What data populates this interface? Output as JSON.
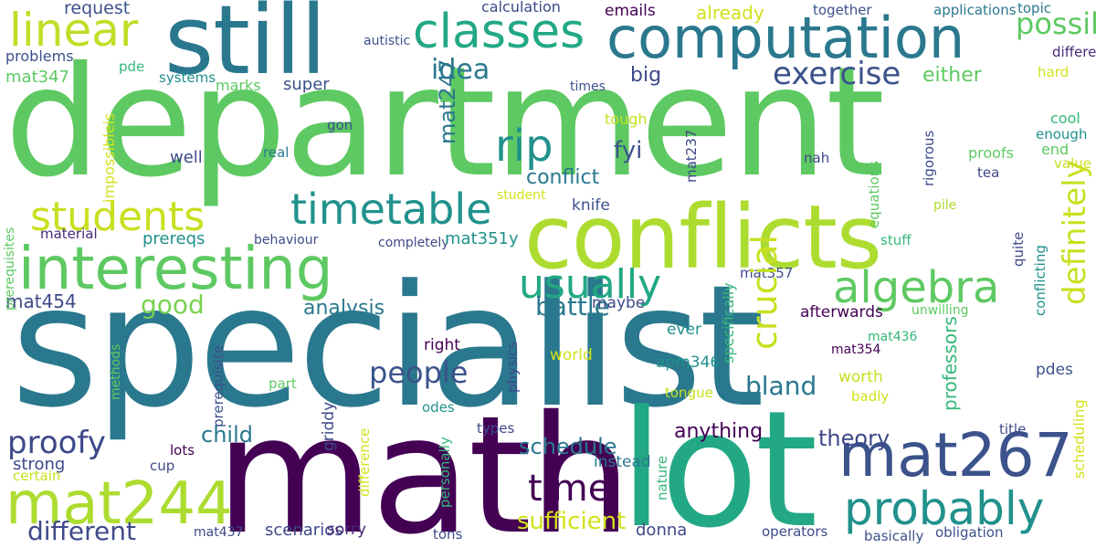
{
  "words": [
    {
      "text": "department",
      "color": "#5ec962"
    },
    {
      "text": "specialist",
      "color": "#2a788e"
    },
    {
      "text": "math",
      "color": "#440154"
    },
    {
      "text": "lot",
      "color": "#22a884"
    },
    {
      "text": "conflicts",
      "color": "#addc30"
    },
    {
      "text": "still",
      "color": "#2a788e"
    },
    {
      "text": "computation",
      "color": "#2a788e"
    },
    {
      "text": "interesting",
      "color": "#5ec962"
    },
    {
      "text": "mat244",
      "color": "#addc30"
    },
    {
      "text": "mat267",
      "color": "#3b528b"
    },
    {
      "text": "classes",
      "color": "#22a884"
    },
    {
      "text": "linear",
      "color": "#bddf26"
    },
    {
      "text": "timetable",
      "color": "#21918c"
    },
    {
      "text": "algebra",
      "color": "#5ec962"
    },
    {
      "text": "probably",
      "color": "#21918c"
    },
    {
      "text": "students",
      "color": "#c8e020"
    },
    {
      "text": "usually",
      "color": "#22a884"
    },
    {
      "text": "rip",
      "color": "#21918c"
    },
    {
      "text": "exercise",
      "color": "#3b528b"
    },
    {
      "text": "people",
      "color": "#3b528b"
    },
    {
      "text": "time",
      "color": "#440154"
    },
    {
      "text": "proofy",
      "color": "#3e4989"
    },
    {
      "text": "idea",
      "color": "#2a788e"
    },
    {
      "text": "possible",
      "color": "#5ec962"
    },
    {
      "text": "good",
      "color": "#7ad151"
    },
    {
      "text": "bland",
      "color": "#2a788e"
    },
    {
      "text": "different",
      "color": "#3e4989"
    },
    {
      "text": "child",
      "color": "#2a788e"
    },
    {
      "text": "sufficient",
      "color": "#d2e21b"
    },
    {
      "text": "schedule",
      "color": "#2a788e"
    },
    {
      "text": "theory",
      "color": "#3e4989"
    },
    {
      "text": "anything",
      "color": "#440154"
    },
    {
      "text": "battle",
      "color": "#2a788e"
    },
    {
      "text": "analysis",
      "color": "#2a788e"
    },
    {
      "text": "fyi",
      "color": "#3b528b"
    },
    {
      "text": "conflict",
      "color": "#2a788e"
    },
    {
      "text": "big",
      "color": "#3e4989"
    },
    {
      "text": "either",
      "color": "#5ec962"
    },
    {
      "text": "already",
      "color": "#d2e21b"
    },
    {
      "text": "request",
      "color": "#3b528b"
    },
    {
      "text": "emails",
      "color": "#440154"
    },
    {
      "text": "calculation",
      "color": "#3e4989"
    },
    {
      "text": "together",
      "color": "#3b528b"
    },
    {
      "text": "applications",
      "color": "#2a788e"
    },
    {
      "text": "topic",
      "color": "#2a788e"
    },
    {
      "text": "problems",
      "color": "#3b528b"
    },
    {
      "text": "autistic",
      "color": "#3b528b"
    },
    {
      "text": "mat347",
      "color": "#5ec962"
    },
    {
      "text": "pde",
      "color": "#35b779"
    },
    {
      "text": "systems",
      "color": "#21918c"
    },
    {
      "text": "marks",
      "color": "#5ec962"
    },
    {
      "text": "super",
      "color": "#3b528b"
    },
    {
      "text": "times",
      "color": "#3b528b"
    },
    {
      "text": "differential",
      "color": "#482878"
    },
    {
      "text": "hard",
      "color": "#d2e21b"
    },
    {
      "text": "cool",
      "color": "#35b779"
    },
    {
      "text": "enough",
      "color": "#21918c"
    },
    {
      "text": "end",
      "color": "#5ec962"
    },
    {
      "text": "value",
      "color": "#c8e020"
    },
    {
      "text": "proofs",
      "color": "#5ec962"
    },
    {
      "text": "tea",
      "color": "#3e4989"
    },
    {
      "text": "nah",
      "color": "#3e4989"
    },
    {
      "text": "real",
      "color": "#2a788e"
    },
    {
      "text": "well",
      "color": "#3e4989"
    },
    {
      "text": "gon",
      "color": "#3b528b"
    },
    {
      "text": "tough",
      "color": "#c8e020"
    },
    {
      "text": "student",
      "color": "#d2e21b"
    },
    {
      "text": "knife",
      "color": "#3b528b"
    },
    {
      "text": "pile",
      "color": "#addc30"
    },
    {
      "text": "material",
      "color": "#482878"
    },
    {
      "text": "behaviour",
      "color": "#3e4989"
    },
    {
      "text": "completely",
      "color": "#3e4989"
    },
    {
      "text": "prereqs",
      "color": "#21918c"
    },
    {
      "text": "mat351y",
      "color": "#21918c"
    },
    {
      "text": "stuff",
      "color": "#35b779"
    },
    {
      "text": "mat357",
      "color": "#3e4989"
    },
    {
      "text": "mat454",
      "color": "#3e4989"
    },
    {
      "text": "maybe",
      "color": "#3e4989"
    },
    {
      "text": "afterwards",
      "color": "#440154"
    },
    {
      "text": "unwilling",
      "color": "#5ec962"
    },
    {
      "text": "ever",
      "color": "#21918c"
    },
    {
      "text": "mat436",
      "color": "#35b779"
    },
    {
      "text": "mat354",
      "color": "#440154"
    },
    {
      "text": "right",
      "color": "#440154"
    },
    {
      "text": "world",
      "color": "#d2e21b"
    },
    {
      "text": "apm346",
      "color": "#21918c"
    },
    {
      "text": "worth",
      "color": "#c8e020"
    },
    {
      "text": "pdes",
      "color": "#3b528b"
    },
    {
      "text": "part",
      "color": "#5ec962"
    },
    {
      "text": "tongue",
      "color": "#c8e020"
    },
    {
      "text": "badly",
      "color": "#d2e21b"
    },
    {
      "text": "odes",
      "color": "#21918c"
    },
    {
      "text": "strong",
      "color": "#3e4989"
    },
    {
      "text": "lots",
      "color": "#440154"
    },
    {
      "text": "cup",
      "color": "#3e4989"
    },
    {
      "text": "certain",
      "color": "#c8e020"
    },
    {
      "text": "types",
      "color": "#3e4989"
    },
    {
      "text": "instead",
      "color": "#2a788e"
    },
    {
      "text": "title",
      "color": "#3e4989"
    },
    {
      "text": "scenarios",
      "color": "#3e4989"
    },
    {
      "text": "sorry",
      "color": "#482878"
    },
    {
      "text": "tons",
      "color": "#3e4989"
    },
    {
      "text": "donna",
      "color": "#3e4989"
    },
    {
      "text": "operators",
      "color": "#3e4989"
    },
    {
      "text": "basically",
      "color": "#3b528b"
    },
    {
      "text": "obligation",
      "color": "#3b528b"
    },
    {
      "text": "mat437",
      "color": "#3e4989"
    },
    {
      "text": "crucial",
      "color": "#c8e020"
    },
    {
      "text": "definitely",
      "color": "#c8e020"
    },
    {
      "text": "mat247",
      "color": "#2a788e"
    },
    {
      "text": "impossibleis",
      "color": "#d2e21b"
    },
    {
      "text": "prerequisites",
      "color": "#5ec962"
    },
    {
      "text": "prerequisite",
      "color": "#3b528b"
    },
    {
      "text": "methods",
      "color": "#5ec962"
    },
    {
      "text": "griddy",
      "color": "#3e4989"
    },
    {
      "text": "difference",
      "color": "#d2e21b"
    },
    {
      "text": "personally",
      "color": "#35b779"
    },
    {
      "text": "physics",
      "color": "#3e4989"
    },
    {
      "text": "nature",
      "color": "#35b779"
    },
    {
      "text": "professors",
      "color": "#35b779"
    },
    {
      "text": "specifically",
      "color": "#35b779"
    },
    {
      "text": "mat237",
      "color": "#3e4989"
    },
    {
      "text": "equations",
      "color": "#5ec962"
    },
    {
      "text": "rigorous",
      "color": "#3e4989"
    },
    {
      "text": "conflicting",
      "color": "#21918c"
    },
    {
      "text": "quite",
      "color": "#3e4989"
    },
    {
      "text": "scheduling",
      "color": "#d2e21b"
    }
  ]
}
